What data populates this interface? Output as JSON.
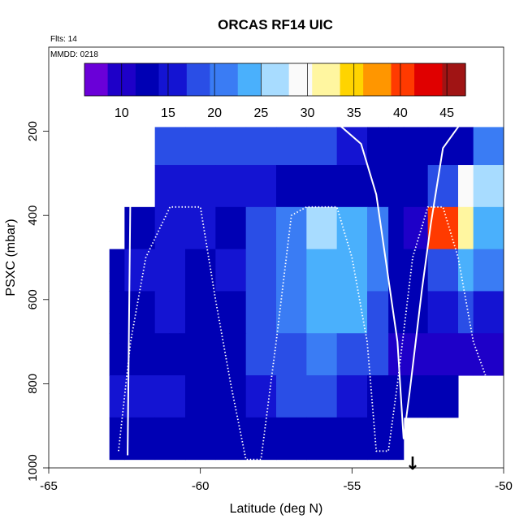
{
  "chart_data": {
    "type": "heatmap",
    "title": "ORCAS RF14 UIC",
    "annotations": {
      "flights": "Flts: 14",
      "date": "MMDD: 0218"
    },
    "xlabel": "Latitude (deg N)",
    "ylabel": "PSXC (mbar)",
    "xlim": [
      -65,
      -50
    ],
    "ylim": [
      1000,
      0
    ],
    "x_ticks": [
      -65,
      -60,
      -55,
      -50
    ],
    "y_ticks": [
      200,
      400,
      600,
      800,
      1000
    ],
    "colorbar": {
      "range": [
        6,
        47
      ],
      "ticks": [
        10,
        15,
        20,
        25,
        30,
        35,
        40,
        45
      ],
      "colors": [
        "#6a00d8",
        "#1e00c8",
        "#0000b4",
        "#1414d2",
        "#2a4ee6",
        "#3a7cf4",
        "#4ab0fc",
        "#a8dcff",
        "#fafafa",
        "#fff6a0",
        "#ffd400",
        "#ff9600",
        "#ff3a00",
        "#e00000",
        "#a01414"
      ]
    },
    "column_edges": [
      -63.0,
      -62.5,
      -61.5,
      -60.5,
      -59.5,
      -58.5,
      -57.5,
      -56.5,
      -55.5,
      -54.5,
      -53.8,
      -53.3,
      -52.5,
      -51.5,
      -51.0,
      -50.0
    ],
    "row_edges": [
      190,
      280,
      380,
      480,
      580,
      680,
      780,
      880,
      980
    ],
    "grid_values": [
      [
        null,
        null,
        18,
        18,
        18,
        17,
        17,
        17,
        16,
        14,
        12,
        13,
        14,
        14,
        21,
        17
      ],
      [
        null,
        null,
        16,
        16,
        15,
        15,
        14,
        14,
        14,
        13,
        12,
        12,
        17,
        29,
        27,
        null
      ],
      [
        null,
        14,
        16,
        16,
        14,
        17,
        22,
        26,
        24,
        21,
        13,
        10,
        40,
        33,
        23,
        null
      ],
      [
        13,
        15,
        16,
        14,
        15,
        18,
        21,
        25,
        24,
        20,
        13,
        14,
        17,
        23,
        21,
        null
      ],
      [
        14,
        14,
        15,
        12,
        13,
        17,
        21,
        24,
        24,
        19,
        13,
        14,
        15,
        19,
        16,
        null
      ],
      [
        14,
        14,
        14,
        14,
        14,
        18,
        19,
        20,
        19,
        17,
        11,
        11,
        10,
        11,
        9,
        null
      ],
      [
        16,
        16,
        16,
        12,
        14,
        16,
        17,
        17,
        16,
        14,
        12,
        12,
        13,
        null,
        null,
        null
      ],
      [
        12,
        14,
        14,
        12,
        12,
        12,
        14,
        14,
        13,
        12,
        12,
        null,
        null,
        null,
        null,
        null
      ]
    ],
    "flight_track": {
      "latitude": [
        -62.4,
        -62.3,
        -62.1,
        -61.9,
        -60,
        -58,
        -56,
        -55.5,
        -54.7,
        -54.2,
        -53.9,
        -53.5,
        -53.3,
        -53.1,
        -52.7,
        -52.4,
        -52.0,
        -51.4,
        -51.0,
        -50.9,
        -50.4,
        -50.0
      ],
      "pressure": [
        970,
        300,
        180,
        175,
        175,
        175,
        175,
        180,
        230,
        350,
        500,
        700,
        930,
        820,
        580,
        420,
        240,
        180,
        175,
        175,
        175,
        175
      ]
    },
    "flight_track_2": {
      "latitude": [
        -62.7,
        -62.3,
        -61.8,
        -61.0,
        -60.0,
        -59.5,
        -59.0,
        -58.5,
        -58.0,
        -57.5,
        -57.0,
        -56.5,
        -56.0,
        -55.5,
        -55.0,
        -54.5,
        -54.2,
        -53.8,
        -53.5,
        -53.0,
        -52.5,
        -52.0,
        -51.5,
        -51.0,
        -50.6
      ],
      "pressure": [
        960,
        700,
        500,
        380,
        380,
        600,
        800,
        980,
        980,
        700,
        400,
        380,
        380,
        380,
        500,
        700,
        960,
        960,
        800,
        500,
        380,
        380,
        500,
        700,
        780
      ]
    },
    "marker": {
      "latitude": -53.0,
      "symbol": "↓"
    }
  }
}
